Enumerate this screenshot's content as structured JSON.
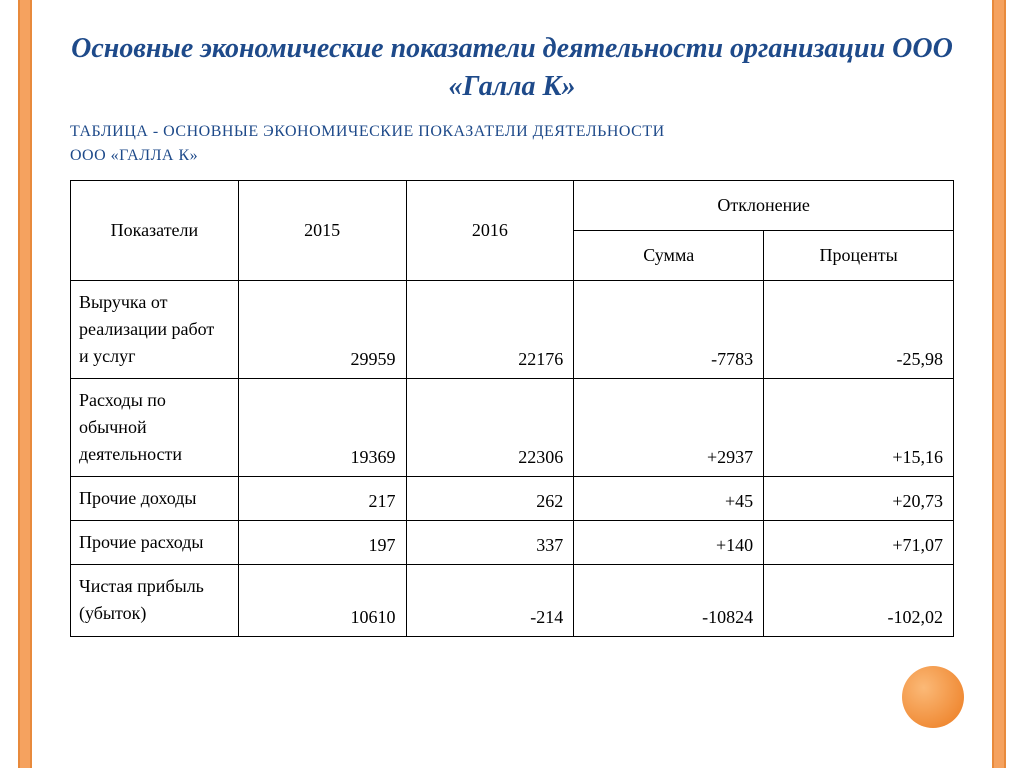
{
  "title": "Основные экономические показатели деятельности организации ООО «Галла К»",
  "subtitle_line1": "ТАБЛИЦА - ОСНОВНЫЕ ЭКОНОМИЧЕСКИЕ ПОКАЗАТЕЛИ ДЕЯТЕЛЬНОСТИ",
  "subtitle_line2": "ООО «ГАЛЛА К»",
  "table": {
    "type": "table",
    "columns": {
      "indicator": "Показатели",
      "year1": "2015",
      "year2": "2016",
      "deviation_group": "Отклонение",
      "deviation_sum": "Сумма",
      "deviation_pct": "Проценты"
    },
    "rows": [
      {
        "label": "Выручка от реализации работ и услуг",
        "y2015": "29959",
        "y2016": "22176",
        "sum": "-7783",
        "pct": "-25,98"
      },
      {
        "label": "Расходы по обычной деятельности",
        "y2015": "19369",
        "y2016": "22306",
        "sum": "+2937",
        "pct": "+15,16"
      },
      {
        "label": "Прочие доходы",
        "y2015": "217",
        "y2016": "262",
        "sum": "+45",
        "pct": "+20,73"
      },
      {
        "label": "Прочие расходы",
        "y2015": "197",
        "y2016": "337",
        "sum": "+140",
        "pct": "+71,07"
      },
      {
        "label": "Чистая прибыль (убыток)",
        "y2015": "10610",
        "y2016": "-214",
        "sum": "-10824",
        "pct": "-102,02"
      }
    ],
    "styling": {
      "border_color": "#000000",
      "text_color": "#000000",
      "title_color": "#1e4a8a",
      "background_color": "#ffffff",
      "font_size": 18,
      "title_font_size": 28,
      "subtitle_font_size": 16,
      "accent_orange": "#ec7a1e",
      "accent_orange_light": "#f5a25f"
    }
  }
}
